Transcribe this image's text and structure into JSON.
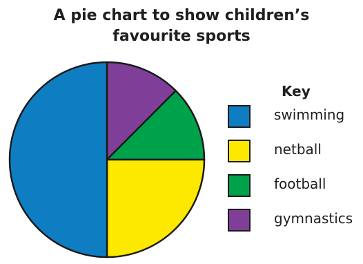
{
  "chart_data": {
    "type": "pie",
    "title": "A pie chart to show children's favourite sports",
    "title_lines": [
      "A pie chart to show children’s",
      "favourite sports"
    ],
    "legend_title": "Key",
    "legend_position": "right",
    "slices": [
      {
        "label": "swimming",
        "value": 50,
        "color": "#0f7dc2"
      },
      {
        "label": "netball",
        "value": 25,
        "color": "#fde800"
      },
      {
        "label": "football",
        "value": 12.5,
        "color": "#00a14b"
      },
      {
        "label": "gymnastics",
        "value": 12.5,
        "color": "#7f3f98"
      }
    ],
    "outline_color": "#1a1a1a"
  }
}
